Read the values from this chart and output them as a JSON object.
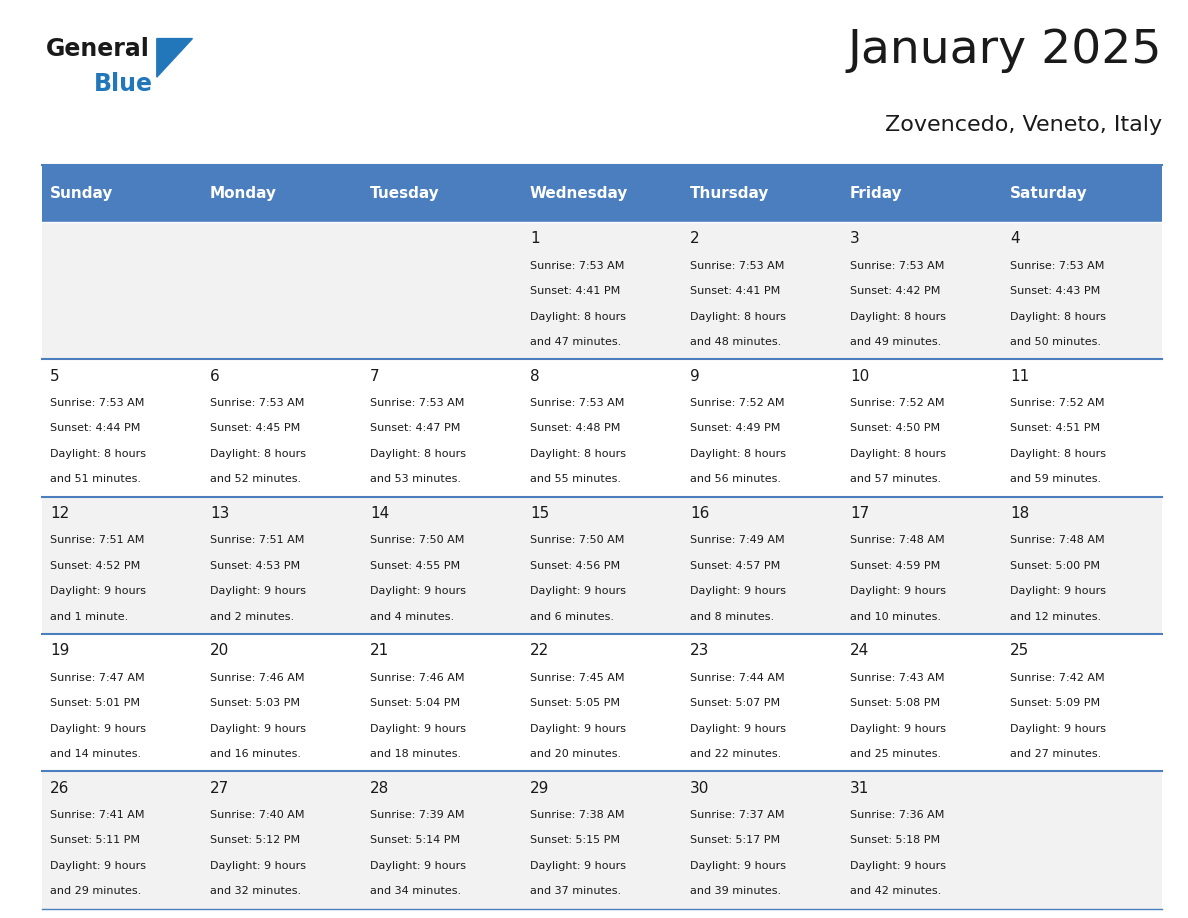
{
  "title": "January 2025",
  "subtitle": "Zovencedo, Veneto, Italy",
  "header_bg_color": "#4a7ebf",
  "header_text_color": "#ffffff",
  "cell_bg_light": "#f2f2f2",
  "cell_bg_white": "#ffffff",
  "border_color": "#4a7ebf",
  "text_color": "#1a1a1a",
  "day_names": [
    "Sunday",
    "Monday",
    "Tuesday",
    "Wednesday",
    "Thursday",
    "Friday",
    "Saturday"
  ],
  "calendar": [
    [
      null,
      null,
      null,
      {
        "day": 1,
        "sunrise": "7:53 AM",
        "sunset": "4:41 PM",
        "dl1": "8 hours",
        "dl2": "and 47 minutes."
      },
      {
        "day": 2,
        "sunrise": "7:53 AM",
        "sunset": "4:41 PM",
        "dl1": "8 hours",
        "dl2": "and 48 minutes."
      },
      {
        "day": 3,
        "sunrise": "7:53 AM",
        "sunset": "4:42 PM",
        "dl1": "8 hours",
        "dl2": "and 49 minutes."
      },
      {
        "day": 4,
        "sunrise": "7:53 AM",
        "sunset": "4:43 PM",
        "dl1": "8 hours",
        "dl2": "and 50 minutes."
      }
    ],
    [
      {
        "day": 5,
        "sunrise": "7:53 AM",
        "sunset": "4:44 PM",
        "dl1": "8 hours",
        "dl2": "and 51 minutes."
      },
      {
        "day": 6,
        "sunrise": "7:53 AM",
        "sunset": "4:45 PM",
        "dl1": "8 hours",
        "dl2": "and 52 minutes."
      },
      {
        "day": 7,
        "sunrise": "7:53 AM",
        "sunset": "4:47 PM",
        "dl1": "8 hours",
        "dl2": "and 53 minutes."
      },
      {
        "day": 8,
        "sunrise": "7:53 AM",
        "sunset": "4:48 PM",
        "dl1": "8 hours",
        "dl2": "and 55 minutes."
      },
      {
        "day": 9,
        "sunrise": "7:52 AM",
        "sunset": "4:49 PM",
        "dl1": "8 hours",
        "dl2": "and 56 minutes."
      },
      {
        "day": 10,
        "sunrise": "7:52 AM",
        "sunset": "4:50 PM",
        "dl1": "8 hours",
        "dl2": "and 57 minutes."
      },
      {
        "day": 11,
        "sunrise": "7:52 AM",
        "sunset": "4:51 PM",
        "dl1": "8 hours",
        "dl2": "and 59 minutes."
      }
    ],
    [
      {
        "day": 12,
        "sunrise": "7:51 AM",
        "sunset": "4:52 PM",
        "dl1": "9 hours",
        "dl2": "and 1 minute."
      },
      {
        "day": 13,
        "sunrise": "7:51 AM",
        "sunset": "4:53 PM",
        "dl1": "9 hours",
        "dl2": "and 2 minutes."
      },
      {
        "day": 14,
        "sunrise": "7:50 AM",
        "sunset": "4:55 PM",
        "dl1": "9 hours",
        "dl2": "and 4 minutes."
      },
      {
        "day": 15,
        "sunrise": "7:50 AM",
        "sunset": "4:56 PM",
        "dl1": "9 hours",
        "dl2": "and 6 minutes."
      },
      {
        "day": 16,
        "sunrise": "7:49 AM",
        "sunset": "4:57 PM",
        "dl1": "9 hours",
        "dl2": "and 8 minutes."
      },
      {
        "day": 17,
        "sunrise": "7:48 AM",
        "sunset": "4:59 PM",
        "dl1": "9 hours",
        "dl2": "and 10 minutes."
      },
      {
        "day": 18,
        "sunrise": "7:48 AM",
        "sunset": "5:00 PM",
        "dl1": "9 hours",
        "dl2": "and 12 minutes."
      }
    ],
    [
      {
        "day": 19,
        "sunrise": "7:47 AM",
        "sunset": "5:01 PM",
        "dl1": "9 hours",
        "dl2": "and 14 minutes."
      },
      {
        "day": 20,
        "sunrise": "7:46 AM",
        "sunset": "5:03 PM",
        "dl1": "9 hours",
        "dl2": "and 16 minutes."
      },
      {
        "day": 21,
        "sunrise": "7:46 AM",
        "sunset": "5:04 PM",
        "dl1": "9 hours",
        "dl2": "and 18 minutes."
      },
      {
        "day": 22,
        "sunrise": "7:45 AM",
        "sunset": "5:05 PM",
        "dl1": "9 hours",
        "dl2": "and 20 minutes."
      },
      {
        "day": 23,
        "sunrise": "7:44 AM",
        "sunset": "5:07 PM",
        "dl1": "9 hours",
        "dl2": "and 22 minutes."
      },
      {
        "day": 24,
        "sunrise": "7:43 AM",
        "sunset": "5:08 PM",
        "dl1": "9 hours",
        "dl2": "and 25 minutes."
      },
      {
        "day": 25,
        "sunrise": "7:42 AM",
        "sunset": "5:09 PM",
        "dl1": "9 hours",
        "dl2": "and 27 minutes."
      }
    ],
    [
      {
        "day": 26,
        "sunrise": "7:41 AM",
        "sunset": "5:11 PM",
        "dl1": "9 hours",
        "dl2": "and 29 minutes."
      },
      {
        "day": 27,
        "sunrise": "7:40 AM",
        "sunset": "5:12 PM",
        "dl1": "9 hours",
        "dl2": "and 32 minutes."
      },
      {
        "day": 28,
        "sunrise": "7:39 AM",
        "sunset": "5:14 PM",
        "dl1": "9 hours",
        "dl2": "and 34 minutes."
      },
      {
        "day": 29,
        "sunrise": "7:38 AM",
        "sunset": "5:15 PM",
        "dl1": "9 hours",
        "dl2": "and 37 minutes."
      },
      {
        "day": 30,
        "sunrise": "7:37 AM",
        "sunset": "5:17 PM",
        "dl1": "9 hours",
        "dl2": "and 39 minutes."
      },
      {
        "day": 31,
        "sunrise": "7:36 AM",
        "sunset": "5:18 PM",
        "dl1": "9 hours",
        "dl2": "and 42 minutes."
      },
      null
    ]
  ],
  "logo_general_color": "#1a1a1a",
  "logo_blue_color": "#2277bb",
  "logo_triangle_color": "#2277bb",
  "fig_width": 11.88,
  "fig_height": 9.18,
  "dpi": 100
}
